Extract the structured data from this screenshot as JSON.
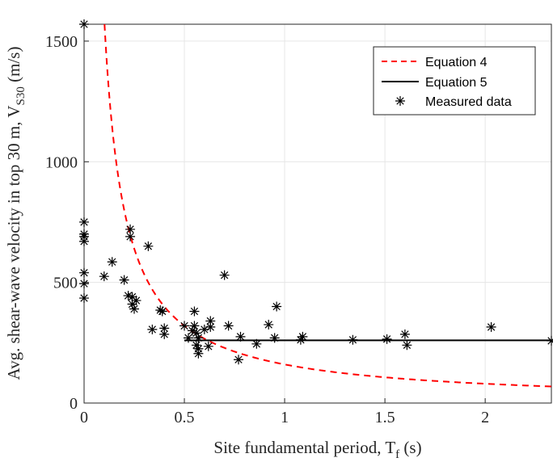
{
  "chart_data": {
    "type": "scatter",
    "xlabel": "Site fundamental period, T",
    "xlabel_sub": "f",
    "xlabel_suffix": " (s)",
    "ylabel": "Avg. shear-wave velocity in top 30 m, V",
    "ylabel_sub": "S30",
    "ylabel_suffix": " (m/s)",
    "xlim": [
      0,
      2.33
    ],
    "ylim": [
      0,
      1570
    ],
    "xticks": [
      0,
      0.5,
      1,
      1.5,
      2
    ],
    "xtick_labels": [
      "0",
      "0.5",
      "1",
      "1.5",
      "2"
    ],
    "yticks": [
      0,
      500,
      1000,
      1500
    ],
    "ytick_labels": [
      "0",
      "500",
      "1000",
      "1500"
    ],
    "grid": true,
    "legend_position": "top-right",
    "series": [
      {
        "name": "Equation 4",
        "style": "dashed-line",
        "color": "#ff0000",
        "formula": "160/x"
      },
      {
        "name": "Equation 5",
        "style": "solid-line",
        "color": "#000000",
        "x": [
          0.5,
          2.33
        ],
        "y": [
          260,
          260
        ]
      },
      {
        "name": "Measured data",
        "style": "asterisk",
        "color": "#000000",
        "points": [
          [
            0,
            1570
          ],
          [
            0,
            750
          ],
          [
            0,
            700
          ],
          [
            0,
            690
          ],
          [
            0,
            670
          ],
          [
            0,
            540
          ],
          [
            0,
            495
          ],
          [
            0,
            435
          ],
          [
            0.1,
            525
          ],
          [
            0.14,
            585
          ],
          [
            0.2,
            510
          ],
          [
            0.22,
            445
          ],
          [
            0.23,
            720
          ],
          [
            0.23,
            690
          ],
          [
            0.24,
            440
          ],
          [
            0.24,
            410
          ],
          [
            0.25,
            390
          ],
          [
            0.26,
            425
          ],
          [
            0.32,
            650
          ],
          [
            0.34,
            305
          ],
          [
            0.38,
            385
          ],
          [
            0.39,
            380
          ],
          [
            0.4,
            310
          ],
          [
            0.4,
            285
          ],
          [
            0.5,
            320
          ],
          [
            0.52,
            270
          ],
          [
            0.54,
            300
          ],
          [
            0.55,
            380
          ],
          [
            0.55,
            320
          ],
          [
            0.56,
            290
          ],
          [
            0.56,
            240
          ],
          [
            0.57,
            225
          ],
          [
            0.57,
            205
          ],
          [
            0.57,
            270
          ],
          [
            0.6,
            305
          ],
          [
            0.62,
            235
          ],
          [
            0.63,
            340
          ],
          [
            0.63,
            315
          ],
          [
            0.7,
            530
          ],
          [
            0.72,
            320
          ],
          [
            0.77,
            180
          ],
          [
            0.78,
            275
          ],
          [
            0.86,
            245
          ],
          [
            0.92,
            325
          ],
          [
            0.95,
            270
          ],
          [
            0.96,
            400
          ],
          [
            1.08,
            262
          ],
          [
            1.09,
            275
          ],
          [
            1.34,
            262
          ],
          [
            1.51,
            265
          ],
          [
            1.6,
            285
          ],
          [
            1.61,
            240
          ],
          [
            2.03,
            315
          ],
          [
            2.33,
            258
          ]
        ]
      }
    ]
  }
}
